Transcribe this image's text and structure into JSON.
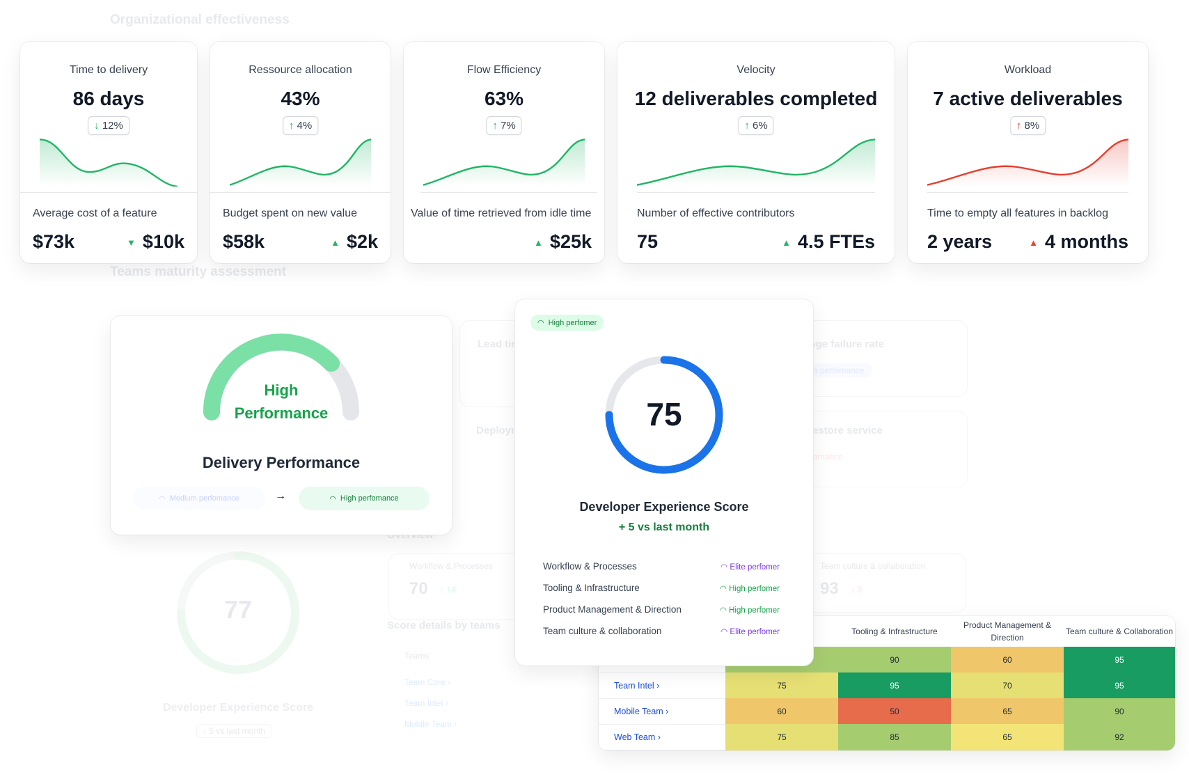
{
  "sections": {
    "org_title": "Organizational effectiveness",
    "teams_title": "Teams maturity assessment"
  },
  "kpis": [
    {
      "label": "Time to delivery",
      "value": "86 days",
      "change": "12%",
      "change_dir": "down",
      "sub_label": "Average cost of a feature",
      "sub_value": "$73k",
      "sub_delta": "$10k",
      "sub_delta_dir": "down",
      "trend_color": "#22b566"
    },
    {
      "label": "Ressource allocation",
      "value": "43%",
      "change": "4%",
      "change_dir": "up",
      "sub_label": "Budget spent on new value",
      "sub_value": "$58k",
      "sub_delta": "$2k",
      "sub_delta_dir": "up",
      "trend_color": "#22b566"
    },
    {
      "label": "Flow Efficiency",
      "value": "63%",
      "change": "7%",
      "change_dir": "up",
      "sub_label": "Value of time retrieved from idle time",
      "sub_value": "",
      "sub_delta": "$25k",
      "sub_delta_dir": "up",
      "trend_color": "#22b566"
    },
    {
      "label": "Velocity",
      "value": "12 deliverables completed",
      "change": "6%",
      "change_dir": "up",
      "sub_label": "Number of effective contributors",
      "sub_value": "75",
      "sub_delta": "4.5 FTEs",
      "sub_delta_dir": "up",
      "trend_color": "#22b566"
    },
    {
      "label": "Workload",
      "value": "7 active deliverables",
      "change": "8%",
      "change_dir": "up",
      "sub_label": "Time to empty all features in backlog",
      "sub_value": "2 years",
      "sub_delta": "4 months",
      "sub_delta_dir": "up",
      "trend_color": "#e53e2e"
    }
  ],
  "delivery": {
    "gauge_text_1": "High",
    "gauge_text_2": "Performance",
    "title": "Delivery Performance",
    "from_level": "Medium perfomance",
    "to_level": "High perfomance",
    "arrow": "→"
  },
  "devx": {
    "badge": "High perfomer",
    "score": "75",
    "score_fraction": 0.75,
    "title": "Developer Experience Score",
    "delta": "+ 5 vs last month",
    "items": [
      {
        "name": "Workflow & Processes",
        "level": "Elite perfomer",
        "color": "#7c3aed"
      },
      {
        "name": "Tooling & Infrastructure",
        "level": "High perfomer",
        "color": "#16a34a"
      },
      {
        "name": "Product Management & Direction",
        "level": "High perfomer",
        "color": "#16a34a"
      },
      {
        "name": "Team culture & collaboration",
        "level": "Elite perfomer",
        "color": "#7c3aed"
      }
    ]
  },
  "heatmap": {
    "headers": [
      "Tooling & Infrastructure",
      "Product Management & Direction",
      "Team culture & Collaboration"
    ],
    "rows": [
      {
        "team": "",
        "cells": [
          null,
          "90",
          "60",
          "95"
        ],
        "colors": [
          "#a6cc70",
          "#a6cc70",
          "#f0c66a",
          "#199c62"
        ]
      },
      {
        "team": "Team Intel",
        "cells": [
          "75",
          "95",
          "70",
          "95"
        ],
        "colors": [
          "#e5df74",
          "#199c62",
          "#e5df74",
          "#199c62"
        ]
      },
      {
        "team": "Mobile Team",
        "cells": [
          "60",
          "50",
          "65",
          "90"
        ],
        "colors": [
          "#f0c66a",
          "#e66c4c",
          "#f0c66a",
          "#a6cc70"
        ]
      },
      {
        "team": "Web Team",
        "cells": [
          "75",
          "85",
          "65",
          "92"
        ],
        "colors": [
          "#e5df74",
          "#a6cc70",
          "#f2e476",
          "#a6cc70"
        ]
      }
    ]
  },
  "background": {
    "lead_time": "Lead time",
    "deployment": "Deployment",
    "failure_rate": "Change failure rate",
    "restore": "Time to restore service",
    "medium": "Medium perfomance",
    "low": "Low perfomance",
    "high": "High",
    "elite": "Elite",
    "overview": "Overview",
    "wf_label": "Workflow & Processes",
    "wf_value": "70",
    "wf_delta": "↑ 14",
    "tc_label": "Team culture & collaboration",
    "tc_value": "93",
    "tc_delta": "↓ 3",
    "score_details": "Score details by teams",
    "teams_header": "Teams",
    "team_core": "Team Core ›",
    "team_intel": "Team Intel ›",
    "mobile_team": "Mobile Team ›",
    "ghost_score": "77",
    "ghost_title": "Developer Experience Score",
    "ghost_delta": "↑ 5 vs last month"
  }
}
